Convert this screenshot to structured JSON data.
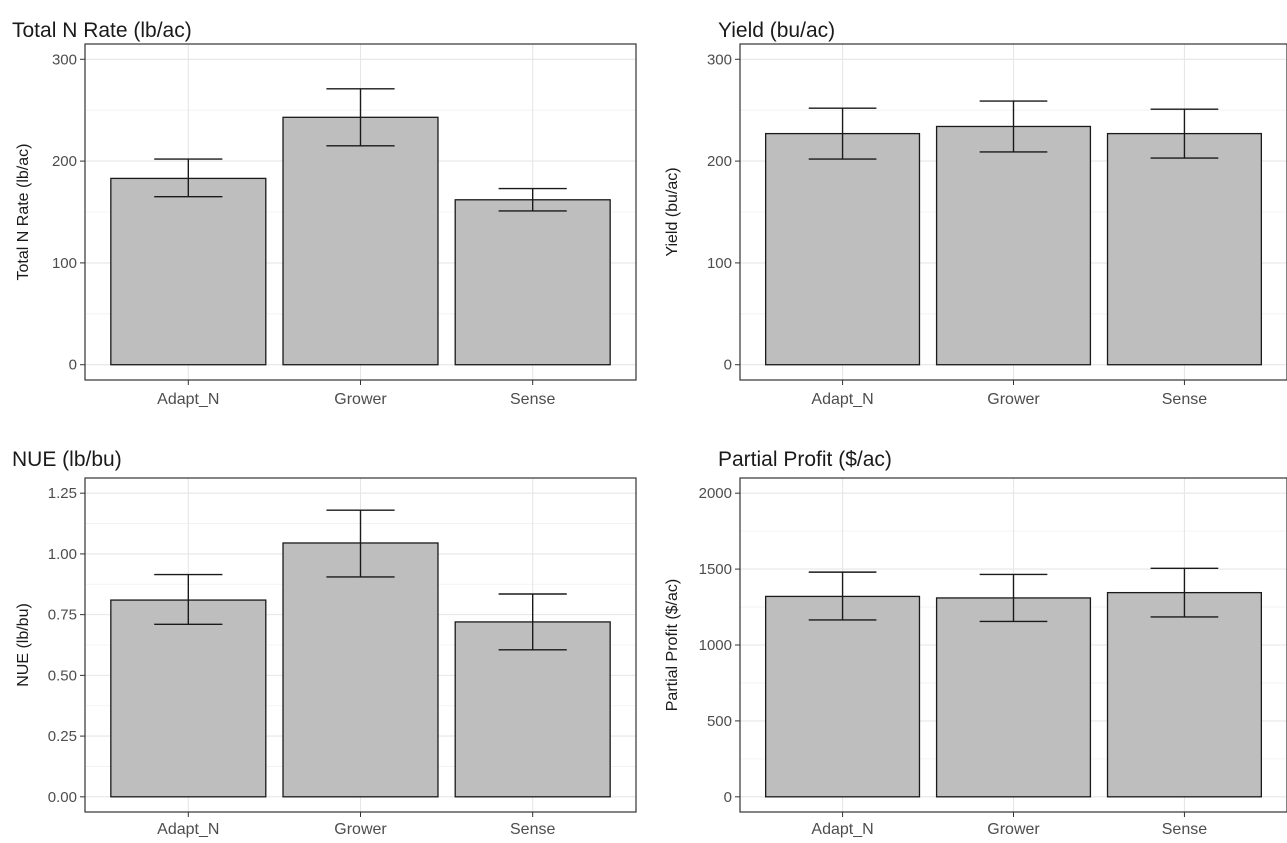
{
  "chart_data": [
    {
      "type": "bar",
      "title": "Total N Rate (lb/ac)",
      "ylabel": "Total N Rate (lb/ac)",
      "xlabel": "",
      "categories": [
        "Adapt_N",
        "Grower",
        "Sense"
      ],
      "values": [
        183,
        243,
        162
      ],
      "error_low": [
        165,
        215,
        151
      ],
      "error_high": [
        202,
        271,
        173
      ],
      "ylim": [
        -15,
        315
      ],
      "yticks": [
        0,
        100,
        200,
        300
      ],
      "ytick_labels": [
        "0",
        "100",
        "200",
        "300"
      ],
      "grid": true,
      "colors": {
        "bar_fill": "#bebebe",
        "bar_stroke": "#1a1a1a"
      }
    },
    {
      "type": "bar",
      "title": "Yield (bu/ac)",
      "ylabel": "Yield (bu/ac)",
      "xlabel": "",
      "categories": [
        "Adapt_N",
        "Grower",
        "Sense"
      ],
      "values": [
        227,
        234,
        227
      ],
      "error_low": [
        202,
        209,
        203
      ],
      "error_high": [
        252,
        259,
        251
      ],
      "ylim": [
        -15,
        315
      ],
      "yticks": [
        0,
        100,
        200,
        300
      ],
      "ytick_labels": [
        "0",
        "100",
        "200",
        "300"
      ],
      "grid": true,
      "colors": {
        "bar_fill": "#bebebe",
        "bar_stroke": "#1a1a1a"
      }
    },
    {
      "type": "bar",
      "title": "NUE (lb/bu)",
      "ylabel": "NUE (lb/bu)",
      "xlabel": "",
      "categories": [
        "Adapt_N",
        "Grower",
        "Sense"
      ],
      "values": [
        0.81,
        1.045,
        0.72
      ],
      "error_low": [
        0.71,
        0.905,
        0.605
      ],
      "error_high": [
        0.915,
        1.18,
        0.835
      ],
      "ylim": [
        -0.0625,
        1.3125
      ],
      "yticks": [
        0,
        0.25,
        0.5,
        0.75,
        1.0,
        1.25
      ],
      "ytick_labels": [
        "0.00",
        "0.25",
        "0.50",
        "0.75",
        "1.00",
        "1.25"
      ],
      "grid": true,
      "colors": {
        "bar_fill": "#bebebe",
        "bar_stroke": "#1a1a1a"
      }
    },
    {
      "type": "bar",
      "title": "Partial Profit ($/ac)",
      "ylabel": "Partial Profit ($/ac)",
      "xlabel": "",
      "categories": [
        "Adapt_N",
        "Grower",
        "Sense"
      ],
      "values": [
        1320,
        1310,
        1345
      ],
      "error_low": [
        1165,
        1155,
        1185
      ],
      "error_high": [
        1480,
        1465,
        1505
      ],
      "ylim": [
        -100,
        2100
      ],
      "yticks": [
        0,
        500,
        1000,
        1500,
        2000
      ],
      "ytick_labels": [
        "0",
        "500",
        "1000",
        "1500",
        "2000"
      ],
      "grid": true,
      "colors": {
        "bar_fill": "#bebebe",
        "bar_stroke": "#1a1a1a"
      }
    }
  ]
}
